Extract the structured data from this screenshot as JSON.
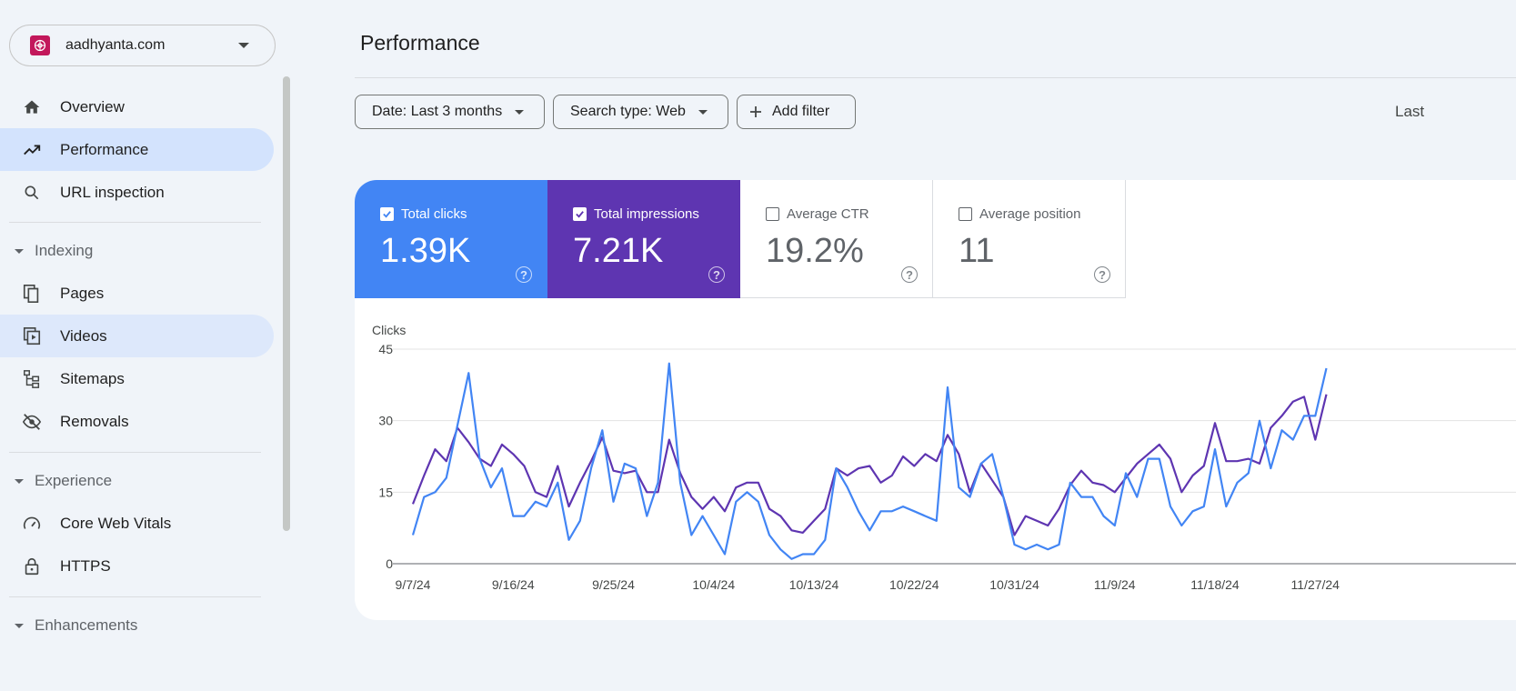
{
  "property": {
    "name": "aadhyanta.com"
  },
  "nav": {
    "overview": "Overview",
    "performance": "Performance",
    "url_inspection": "URL inspection",
    "indexing": "Indexing",
    "pages": "Pages",
    "videos": "Videos",
    "sitemaps": "Sitemaps",
    "removals": "Removals",
    "experience": "Experience",
    "core_web_vitals": "Core Web Vitals",
    "https": "HTTPS",
    "enhancements": "Enhancements"
  },
  "header": {
    "title": "Performance",
    "last_text": "Last"
  },
  "filters": {
    "date": "Date: Last 3 months",
    "search_type": "Search type: Web",
    "add_filter": "Add filter"
  },
  "metrics": [
    {
      "label": "Total clicks",
      "value": "1.39K",
      "checked": true,
      "color": "#4285f4"
    },
    {
      "label": "Total impressions",
      "value": "7.21K",
      "checked": true,
      "color": "#5e35b1"
    },
    {
      "label": "Average CTR",
      "value": "19.2%",
      "checked": false,
      "color": "#ffffff"
    },
    {
      "label": "Average position",
      "value": "11",
      "checked": false,
      "color": "#ffffff"
    }
  ],
  "colors": {
    "clicks": "#4285f4",
    "impressions": "#5e35b1",
    "active_nav": "#d3e3fd"
  },
  "chart_data": {
    "type": "line",
    "ylabel": "Clicks",
    "ylim": [
      0,
      45
    ],
    "yticks": [
      "0",
      "15",
      "30",
      "45"
    ],
    "xlabels": [
      "9/7/24",
      "9/16/24",
      "9/25/24",
      "10/4/24",
      "10/13/24",
      "10/22/24",
      "10/31/24",
      "11/9/24",
      "11/18/24",
      "11/27/24"
    ],
    "series": [
      {
        "name": "Total clicks",
        "color": "#4285f4",
        "values": [
          6,
          14,
          15,
          18,
          29,
          40,
          22,
          16,
          20,
          10,
          10,
          13,
          12,
          17,
          5,
          9,
          20,
          28,
          13,
          21,
          20,
          10,
          17,
          42,
          17,
          6,
          10,
          6,
          2,
          13,
          15,
          13,
          6,
          3,
          1,
          2,
          2,
          5,
          20,
          16,
          11,
          7,
          11,
          11,
          12,
          11,
          10,
          9,
          37,
          16,
          14,
          21,
          23,
          14,
          4,
          3,
          4,
          3,
          4,
          17,
          14,
          14,
          10,
          8,
          19,
          14,
          22,
          22,
          12,
          8,
          11,
          12,
          24,
          12,
          17,
          19,
          30,
          20,
          28,
          26,
          31,
          31,
          41
        ]
      },
      {
        "name": "Total impressions",
        "color": "#5e35b1",
        "values": [
          12.5,
          18.5,
          24,
          21.5,
          28.5,
          25.5,
          22,
          20.5,
          25,
          23,
          20.5,
          15,
          14,
          20.5,
          12,
          17,
          21.5,
          26.5,
          19.5,
          19,
          19.5,
          15,
          15,
          26,
          19,
          14,
          11.5,
          14,
          11,
          16,
          17,
          17,
          11.5,
          10,
          7,
          6.5,
          9,
          11.5,
          20,
          18.5,
          20,
          20.5,
          17,
          18.5,
          22.5,
          20.5,
          23,
          21.5,
          27,
          23,
          15,
          21,
          17.5,
          14,
          6,
          10,
          9,
          8,
          11.5,
          16.5,
          19.5,
          17,
          16.5,
          15,
          18,
          21,
          23,
          25,
          22,
          15,
          18.5,
          20.5,
          29.5,
          21.5,
          21.5,
          22,
          21,
          28.5,
          31,
          34,
          35,
          26,
          35.5
        ]
      }
    ],
    "grid": true
  }
}
